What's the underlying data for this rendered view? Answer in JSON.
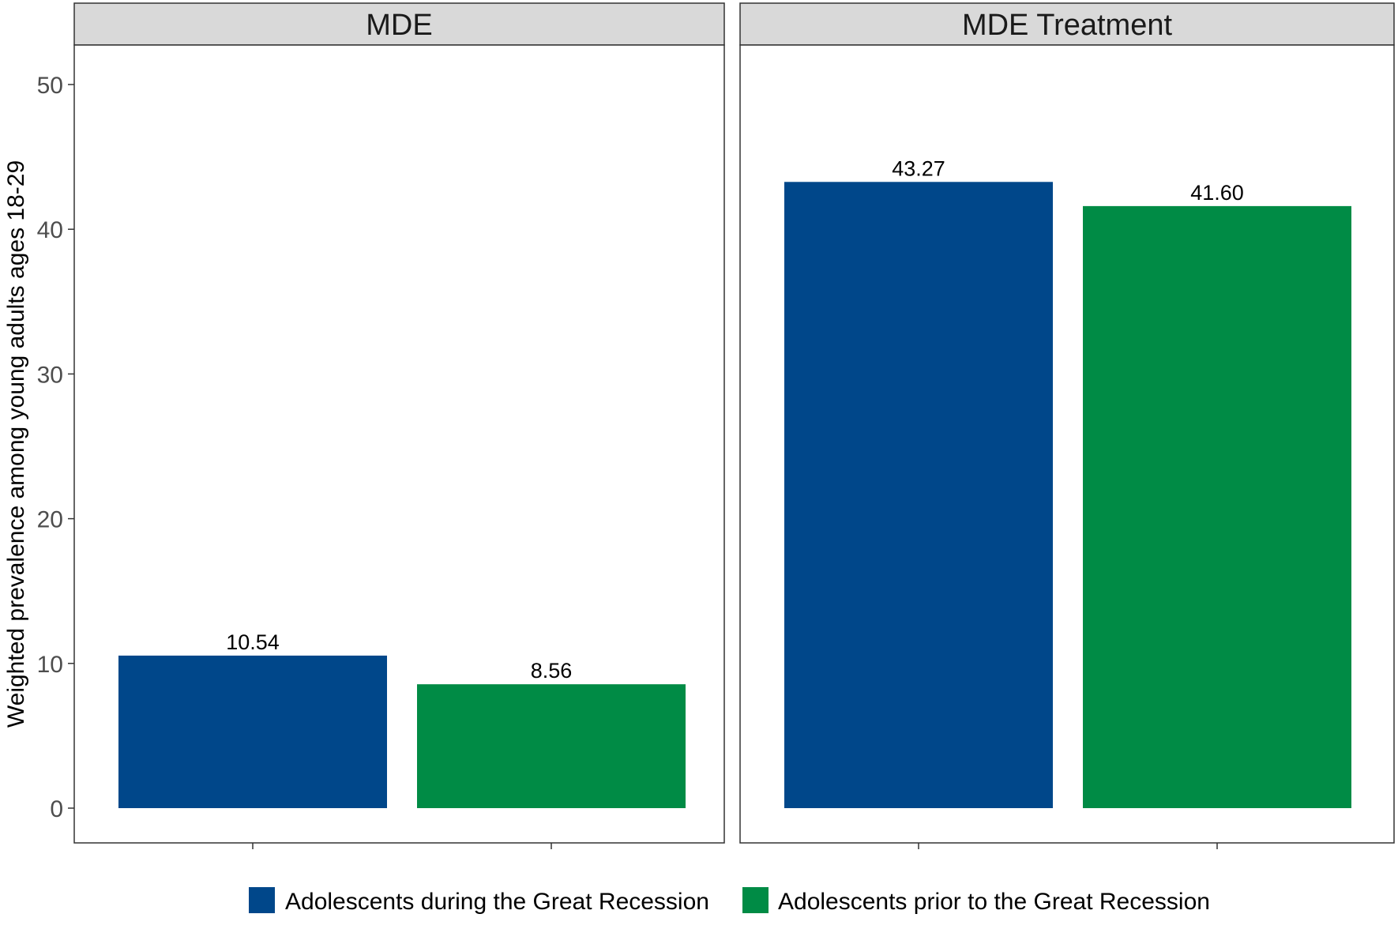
{
  "chart_data": {
    "type": "bar",
    "ylabel": "Weighted prevalence among young adults ages 18-29",
    "xlabel": "",
    "ylim": [
      0,
      52
    ],
    "yticks": [
      0,
      10,
      20,
      30,
      40,
      50
    ],
    "grid": false,
    "legend_position": "bottom",
    "series": [
      {
        "name": "Adolescents during the Great Recession",
        "color": "#00478a"
      },
      {
        "name": "Adolescents prior to the Great Recession",
        "color": "#008b45"
      }
    ],
    "panels": [
      {
        "title": "MDE",
        "values": [
          10.54,
          8.56
        ],
        "labels": [
          "10.54",
          "8.56"
        ]
      },
      {
        "title": "MDE Treatment",
        "values": [
          43.27,
          41.6
        ],
        "labels": [
          "43.27",
          "41.60"
        ]
      }
    ]
  }
}
